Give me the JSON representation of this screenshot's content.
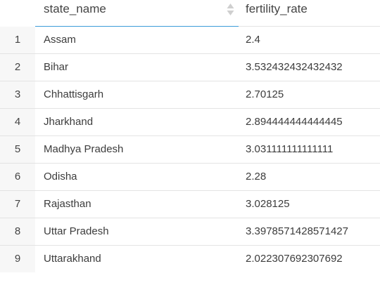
{
  "columns": {
    "state": "state_name",
    "rate": "fertility_rate"
  },
  "rows": [
    {
      "index": "1",
      "state": "Assam",
      "rate": "2.4"
    },
    {
      "index": "2",
      "state": "Bihar",
      "rate": "3.532432432432432"
    },
    {
      "index": "3",
      "state": "Chhattisgarh",
      "rate": "2.70125"
    },
    {
      "index": "4",
      "state": "Jharkhand",
      "rate": "2.894444444444445"
    },
    {
      "index": "5",
      "state": "Madhya Pradesh",
      "rate": "3.031111111111111"
    },
    {
      "index": "6",
      "state": "Odisha",
      "rate": "2.28"
    },
    {
      "index": "7",
      "state": "Rajasthan",
      "rate": "3.028125"
    },
    {
      "index": "8",
      "state": "Uttar Pradesh",
      "rate": "3.3978571428571427"
    },
    {
      "index": "9",
      "state": "Uttarakhand",
      "rate": "2.022307692307692"
    }
  ],
  "icons": {
    "sort": "sort-icon"
  }
}
